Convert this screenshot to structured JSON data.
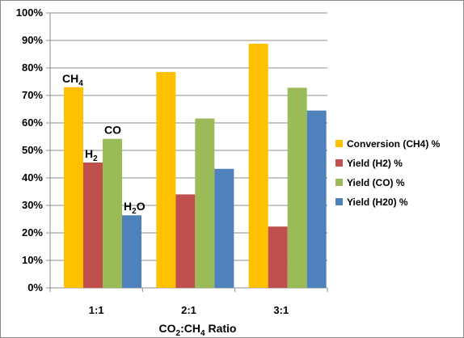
{
  "chart_data": {
    "type": "bar",
    "categories": [
      "1:1",
      "2:1",
      "3:1"
    ],
    "series": [
      {
        "name": "Conversion (CH4) %",
        "color": "#FFC000",
        "values": [
          73,
          78.5,
          88.8
        ]
      },
      {
        "name": "Yield (H2) %",
        "color": "#C0504D",
        "values": [
          45.6,
          34,
          22.3
        ]
      },
      {
        "name": "Yield (CO) %",
        "color": "#9BBB59",
        "values": [
          54.2,
          61.6,
          72.8
        ]
      },
      {
        "name": "Yield (H20) %",
        "color": "#4F81BD",
        "values": [
          26.4,
          43.3,
          64.5
        ]
      }
    ],
    "ylim": [
      0,
      100
    ],
    "yticks": [
      "0%",
      "10%",
      "20%",
      "30%",
      "40%",
      "50%",
      "60%",
      "70%",
      "80%",
      "90%",
      "100%"
    ],
    "xlabel": {
      "parts": [
        {
          "text": "CO",
          "sub": false
        },
        {
          "text": "2",
          "sub": true
        },
        {
          "text": ":CH",
          "sub": false
        },
        {
          "text": "4",
          "sub": true
        },
        {
          "text": " Ratio",
          "sub": false
        }
      ]
    },
    "annotations": [
      {
        "series": 0,
        "base": "CH",
        "sub": "4"
      },
      {
        "series": 1,
        "base": "H",
        "sub": "2"
      },
      {
        "series": 2,
        "base": "CO",
        "sub": ""
      },
      {
        "series": 3,
        "base": "H",
        "sub": "2",
        "tail": "O"
      }
    ],
    "grid": true,
    "legend": "right"
  }
}
